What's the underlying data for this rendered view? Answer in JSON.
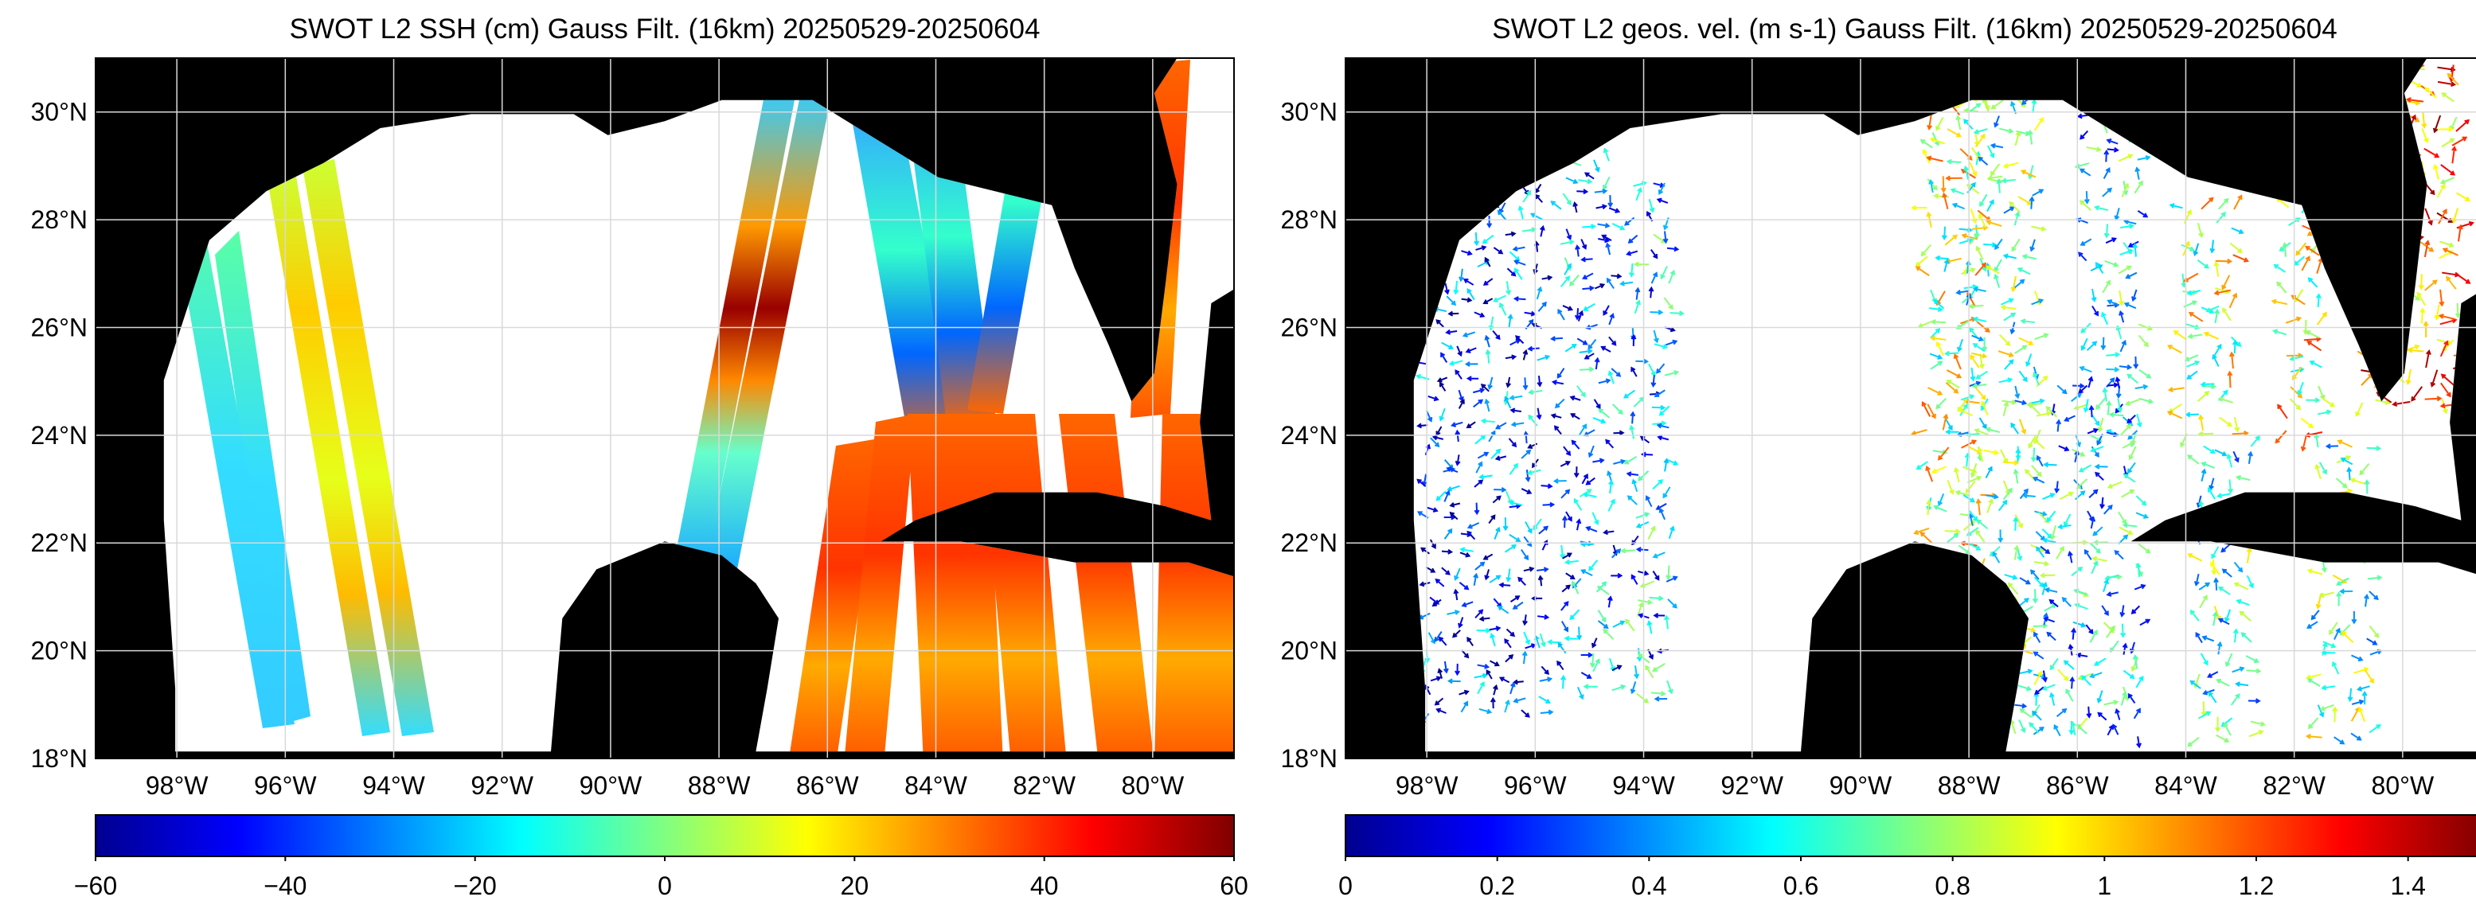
{
  "panels": [
    {
      "title": "SWOT L2 SSH (cm) Gauss Filt. (16km) 20250529-20250604",
      "colorbar": {
        "min": -60,
        "max": 60,
        "ticks": [
          "−60",
          "−40",
          "−20",
          "0",
          "20",
          "40",
          "60"
        ]
      },
      "fields": [
        {
          "swath": "s1",
          "values": [
            -12,
            -8,
            -10
          ]
        },
        {
          "swath": "s2",
          "values": [
            4,
            8,
            3
          ]
        },
        {
          "swath": "s3",
          "values": [
            -25,
            55,
            -18
          ]
        },
        {
          "swath": "s4",
          "values": [
            -22,
            -28,
            -35
          ]
        },
        {
          "swath": "s5",
          "values": [
            45,
            40,
            50
          ]
        }
      ]
    },
    {
      "title": "SWOT L2 geos. vel. (m s-1) Gauss Filt. (16km) 20250529-20250604",
      "colorbar": {
        "min": 0,
        "max": 1.5,
        "ticks": [
          "0",
          "0.2",
          "0.4",
          "0.6",
          "0.8",
          "1",
          "1.2",
          "1.4"
        ]
      }
    }
  ],
  "map": {
    "lon_range": [
      -99.5,
      -78.5
    ],
    "lat_range": [
      18,
      31
    ],
    "lon_ticks": [
      "98°W",
      "96°W",
      "94°W",
      "92°W",
      "90°W",
      "88°W",
      "86°W",
      "84°W",
      "82°W",
      "80°W"
    ],
    "lat_ticks": [
      "18°N",
      "20°N",
      "22°N",
      "24°N",
      "26°N",
      "28°N",
      "30°N"
    ],
    "land_color": "#000000",
    "ocean_color": "#ffffff",
    "grid_color": "#d9d9d9"
  },
  "colormap": "jet"
}
